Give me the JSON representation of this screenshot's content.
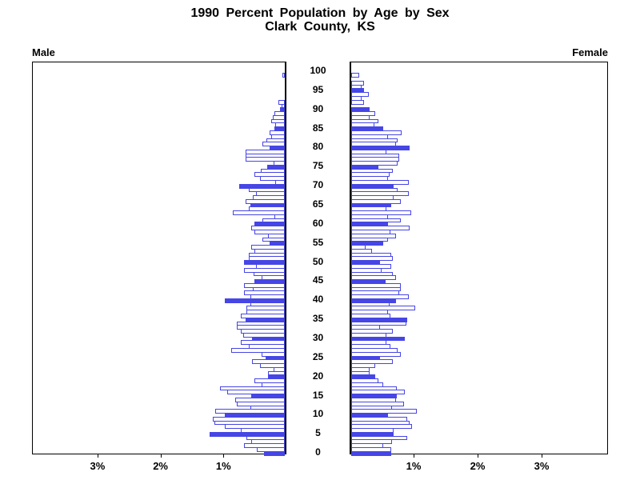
{
  "title": {
    "line1": "1990 Percent Population by Age by Sex",
    "line2": "Clark County, KS"
  },
  "axis_labels": {
    "male": "Male",
    "female": "Female"
  },
  "colors": {
    "bar_outline": "#4646e6",
    "bar_fill_highlight": "#4646e6",
    "bar_fill": "#ffffff",
    "axis": "#000000",
    "text": "#000000",
    "background": "#ffffff"
  },
  "chart_data": {
    "type": "bar",
    "subtype": "population_pyramid",
    "title": "1990 Percent Population by Age by Sex",
    "subtitle": "Clark County, KS",
    "left_series_label": "Male",
    "right_series_label": "Female",
    "unit": "% of total population",
    "age_axis": {
      "min": 0,
      "max": 100,
      "label_step": 5,
      "tick_labels": [
        "0",
        "5",
        "10",
        "15",
        "20",
        "25",
        "30",
        "35",
        "40",
        "45",
        "50",
        "55",
        "60",
        "65",
        "70",
        "75",
        "80",
        "85",
        "90",
        "95",
        "100"
      ]
    },
    "x_axis": {
      "max_pct": 4.05,
      "tick_values": [
        1,
        2,
        3
      ],
      "tick_labels": [
        "1%",
        "2%",
        "3%"
      ],
      "male_axis_direction": "right_to_left",
      "female_axis_direction": "left_to_right"
    },
    "bar_width_years": 1,
    "filled_bars_every": 5,
    "grid": false,
    "series": [
      {
        "name": "Male",
        "side": "left",
        "ages_are_indices": true,
        "values": [
          0.33,
          0.44,
          0.65,
          0.53,
          0.61,
          1.2,
          0.7,
          0.95,
          1.12,
          1.14,
          0.95,
          1.11,
          0.55,
          0.76,
          0.79,
          0.54,
          0.91,
          1.03,
          0.37,
          0.48,
          0.27,
          0.27,
          0.18,
          0.4,
          0.52,
          0.31,
          0.37,
          0.85,
          0.57,
          0.7,
          0.52,
          0.66,
          0.7,
          0.76,
          0.76,
          0.62,
          0.7,
          0.61,
          0.61,
          0.55,
          0.95,
          0.55,
          0.65,
          0.51,
          0.65,
          0.48,
          0.37,
          0.49,
          0.65,
          0.46,
          0.65,
          0.57,
          0.57,
          0.48,
          0.53,
          0.24,
          0.35,
          0.27,
          0.48,
          0.53,
          0.48,
          0.35,
          0.17,
          0.82,
          0.57,
          0.55,
          0.62,
          0.51,
          0.46,
          0.57,
          0.73,
          0.15,
          0.4,
          0.48,
          0.38,
          0.28,
          0.18,
          0.62,
          0.62,
          0.62,
          0.24,
          0.35,
          0.29,
          0.22,
          0.24,
          0.16,
          0.15,
          0.22,
          0.19,
          0.16,
          0.08,
          0.05,
          0.1,
          0,
          0,
          0,
          0,
          0,
          0,
          0.04,
          0
        ]
      },
      {
        "name": "Female",
        "side": "right",
        "ages_are_indices": true,
        "values": [
          0.62,
          0.63,
          0.5,
          0.64,
          0.87,
          0.66,
          0.66,
          0.95,
          0.91,
          0.87,
          0.58,
          1.03,
          0.64,
          0.83,
          0.7,
          0.71,
          0.84,
          0.71,
          0.5,
          0.42,
          0.37,
          0.29,
          0.29,
          0.37,
          0.65,
          0.45,
          0.78,
          0.73,
          0.61,
          0.55,
          0.84,
          0.55,
          0.65,
          0.45,
          0.86,
          0.87,
          0.61,
          0.58,
          1.0,
          0.6,
          0.7,
          0.9,
          0.75,
          0.78,
          0.78,
          0.54,
          0.7,
          0.65,
          0.48,
          0.62,
          0.45,
          0.65,
          0.62,
          0.32,
          0.23,
          0.5,
          0.58,
          0.7,
          0.61,
          0.91,
          0.58,
          0.78,
          0.58,
          0.94,
          0.55,
          0.62,
          0.78,
          0.66,
          0.9,
          0.73,
          0.66,
          0.9,
          0.58,
          0.6,
          0.65,
          0.42,
          0.72,
          0.75,
          0.75,
          0.55,
          0.91,
          0.7,
          0.73,
          0.58,
          0.79,
          0.5,
          0.36,
          0.42,
          0.29,
          0.37,
          0.29,
          0,
          0.2,
          0.16,
          0.28,
          0.2,
          0.16,
          0.2,
          0,
          0.125,
          0
        ]
      }
    ]
  }
}
